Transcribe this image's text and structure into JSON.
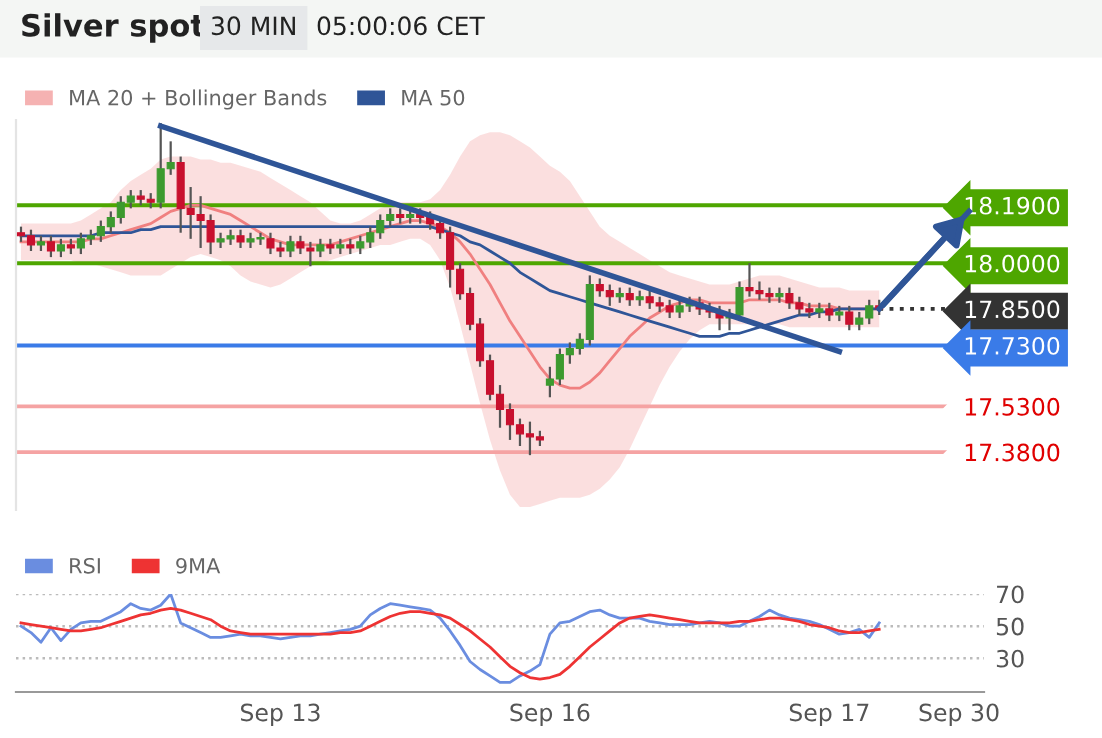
{
  "chart_data": [
    {
      "type": "candlestick",
      "title": "Silver spot",
      "subtitle": "30 MIN",
      "annotations": [
        "05:00:06 CET"
      ],
      "categories": [
        null,
        null,
        null,
        null,
        null,
        null,
        null,
        null,
        null,
        null,
        null,
        null,
        null,
        null,
        null,
        null,
        null,
        null,
        null,
        null,
        null,
        null,
        null,
        null,
        null,
        null,
        null,
        null,
        null,
        null,
        null,
        null,
        null,
        null,
        null,
        null,
        null,
        null,
        null,
        null,
        null,
        null,
        null,
        null,
        null,
        null,
        null,
        null,
        null,
        null,
        null,
        null,
        null,
        null,
        null,
        null,
        null,
        null,
        null,
        null,
        null,
        null,
        null,
        null,
        null,
        null,
        null,
        null,
        null,
        null,
        null,
        null,
        null,
        null,
        null,
        null,
        null,
        null,
        null,
        null,
        null,
        null,
        null,
        null,
        null,
        null,
        null,
        null,
        null,
        null,
        null,
        null,
        null,
        null,
        null,
        null,
        null
      ],
      "ohlc": [
        [
          18.1,
          18.12,
          18.07,
          18.09
        ],
        [
          18.09,
          18.11,
          18.04,
          18.06
        ],
        [
          18.06,
          18.09,
          18.04,
          18.07
        ],
        [
          18.07,
          18.09,
          18.02,
          18.04
        ],
        [
          18.04,
          18.08,
          18.02,
          18.06
        ],
        [
          18.06,
          18.08,
          18.03,
          18.05
        ],
        [
          18.05,
          18.1,
          18.03,
          18.08
        ],
        [
          18.08,
          18.11,
          18.06,
          18.09
        ],
        [
          18.09,
          18.14,
          18.07,
          18.12
        ],
        [
          18.12,
          18.17,
          18.1,
          18.15
        ],
        [
          18.15,
          18.22,
          18.13,
          18.2
        ],
        [
          18.2,
          18.24,
          18.18,
          18.22
        ],
        [
          18.22,
          18.24,
          18.19,
          18.21
        ],
        [
          18.21,
          18.23,
          18.18,
          18.2
        ],
        [
          18.2,
          18.46,
          18.18,
          18.31
        ],
        [
          18.31,
          18.4,
          18.29,
          18.33
        ],
        [
          18.33,
          18.35,
          18.1,
          18.18
        ],
        [
          18.18,
          18.25,
          18.08,
          18.16
        ],
        [
          18.16,
          18.22,
          18.05,
          18.14
        ],
        [
          18.14,
          18.16,
          18.03,
          18.07
        ],
        [
          18.07,
          18.1,
          18.05,
          18.08
        ],
        [
          18.08,
          18.11,
          18.06,
          18.09
        ],
        [
          18.09,
          18.11,
          18.05,
          18.07
        ],
        [
          18.07,
          18.1,
          18.05,
          18.08
        ],
        [
          18.08,
          18.1,
          18.06,
          18.08
        ],
        [
          18.08,
          18.1,
          18.03,
          18.05
        ],
        [
          18.05,
          18.07,
          18.02,
          18.04
        ],
        [
          18.04,
          18.09,
          18.02,
          18.07
        ],
        [
          18.07,
          18.09,
          18.03,
          18.05
        ],
        [
          18.05,
          18.07,
          17.99,
          18.04
        ],
        [
          18.04,
          18.08,
          18.02,
          18.06
        ],
        [
          18.06,
          18.08,
          18.03,
          18.05
        ],
        [
          18.05,
          18.08,
          18.03,
          18.06
        ],
        [
          18.06,
          18.08,
          18.03,
          18.05
        ],
        [
          18.05,
          18.09,
          18.03,
          18.07
        ],
        [
          18.07,
          18.12,
          18.05,
          18.1
        ],
        [
          18.1,
          18.16,
          18.08,
          18.14
        ],
        [
          18.14,
          18.18,
          18.12,
          18.16
        ],
        [
          18.16,
          18.18,
          18.13,
          18.15
        ],
        [
          18.15,
          18.18,
          18.13,
          18.16
        ],
        [
          18.16,
          18.18,
          18.13,
          18.15
        ],
        [
          18.15,
          18.17,
          18.11,
          18.13
        ],
        [
          18.13,
          18.15,
          18.08,
          18.1
        ],
        [
          18.1,
          18.12,
          17.92,
          17.98
        ],
        [
          17.98,
          18.0,
          17.88,
          17.9
        ],
        [
          17.9,
          17.92,
          17.78,
          17.8
        ],
        [
          17.8,
          17.82,
          17.66,
          17.68
        ],
        [
          17.68,
          17.7,
          17.55,
          17.57
        ],
        [
          17.57,
          17.6,
          17.46,
          17.52
        ],
        [
          17.52,
          17.54,
          17.42,
          17.47
        ],
        [
          17.47,
          17.49,
          17.4,
          17.44
        ],
        [
          17.44,
          17.48,
          17.37,
          17.43
        ],
        [
          17.43,
          17.45,
          17.4,
          17.42
        ],
        [
          17.6,
          17.66,
          17.56,
          17.62
        ],
        [
          17.62,
          17.72,
          17.6,
          17.7
        ],
        [
          17.7,
          17.74,
          17.67,
          17.72
        ],
        [
          17.72,
          17.77,
          17.7,
          17.75
        ],
        [
          17.75,
          17.96,
          17.73,
          17.93
        ],
        [
          17.93,
          17.95,
          17.89,
          17.91
        ],
        [
          17.91,
          17.93,
          17.86,
          17.89
        ],
        [
          17.89,
          17.92,
          17.87,
          17.9
        ],
        [
          17.9,
          17.92,
          17.86,
          17.88
        ],
        [
          17.88,
          17.91,
          17.86,
          17.89
        ],
        [
          17.89,
          17.91,
          17.85,
          17.87
        ],
        [
          17.87,
          17.89,
          17.84,
          17.86
        ],
        [
          17.86,
          17.88,
          17.82,
          17.84
        ],
        [
          17.84,
          17.88,
          17.82,
          17.86
        ],
        [
          17.86,
          17.89,
          17.84,
          17.87
        ],
        [
          17.87,
          17.89,
          17.83,
          17.85
        ],
        [
          17.85,
          17.87,
          17.82,
          17.84
        ],
        [
          17.84,
          17.86,
          17.78,
          17.82
        ],
        [
          17.82,
          17.85,
          17.78,
          17.83
        ],
        [
          17.83,
          17.94,
          17.81,
          17.92
        ],
        [
          17.92,
          18.0,
          17.89,
          17.91
        ],
        [
          17.91,
          17.94,
          17.88,
          17.9
        ],
        [
          17.9,
          17.92,
          17.87,
          17.89
        ],
        [
          17.89,
          17.92,
          17.87,
          17.9
        ],
        [
          17.9,
          17.92,
          17.85,
          17.87
        ],
        [
          17.87,
          17.89,
          17.83,
          17.85
        ],
        [
          17.85,
          17.87,
          17.82,
          17.84
        ],
        [
          17.84,
          17.87,
          17.82,
          17.85
        ],
        [
          17.85,
          17.87,
          17.81,
          17.83
        ],
        [
          17.83,
          17.86,
          17.81,
          17.84
        ],
        [
          17.84,
          17.86,
          17.78,
          17.8
        ],
        [
          17.8,
          17.84,
          17.78,
          17.82
        ],
        [
          17.82,
          17.88,
          17.8,
          17.86
        ],
        [
          17.86,
          17.88,
          17.83,
          17.85
        ],
        null,
        null,
        null,
        null,
        null,
        null,
        null,
        null,
        null,
        null
      ],
      "series": [
        {
          "name": "MA 20 + Bollinger Bands",
          "type": "line",
          "color": "#f08080",
          "values": [
            18.07,
            18.07,
            18.07,
            18.07,
            18.07,
            18.07,
            18.07,
            18.08,
            18.08,
            18.09,
            18.1,
            18.11,
            18.12,
            18.13,
            18.15,
            18.17,
            18.18,
            18.19,
            18.19,
            18.18,
            18.17,
            18.16,
            18.14,
            18.12,
            18.1,
            18.08,
            18.07,
            18.06,
            18.06,
            18.06,
            18.06,
            18.06,
            18.07,
            18.08,
            18.09,
            18.1,
            18.11,
            18.12,
            18.13,
            18.14,
            18.14,
            18.13,
            18.12,
            18.1,
            18.07,
            18.03,
            17.98,
            17.93,
            17.87,
            17.81,
            17.76,
            17.71,
            17.66,
            17.62,
            17.6,
            17.59,
            17.59,
            17.61,
            17.64,
            17.68,
            17.72,
            17.76,
            17.79,
            17.82,
            17.84,
            17.86,
            17.87,
            17.88,
            17.88,
            17.87,
            17.87,
            17.87,
            17.87,
            17.88,
            17.88,
            17.88,
            17.88,
            17.87,
            17.87,
            17.86,
            17.86,
            17.86,
            17.85,
            17.85,
            17.85,
            17.85,
            17.85,
            null,
            null,
            null,
            null,
            null,
            null,
            null,
            null,
            null,
            null
          ],
          "upper": [
            18.13,
            18.13,
            18.13,
            18.13,
            18.13,
            18.13,
            18.14,
            18.16,
            18.18,
            18.2,
            18.24,
            18.27,
            18.29,
            18.31,
            18.34,
            18.35,
            18.35,
            18.35,
            18.34,
            18.34,
            18.33,
            18.33,
            18.32,
            18.31,
            18.3,
            18.28,
            18.26,
            18.24,
            18.22,
            18.2,
            18.17,
            18.14,
            18.13,
            18.13,
            18.14,
            18.16,
            18.18,
            18.19,
            18.2,
            18.2,
            18.2,
            18.21,
            18.24,
            18.29,
            18.35,
            18.4,
            18.42,
            18.43,
            18.43,
            18.42,
            18.4,
            18.38,
            18.35,
            18.32,
            18.3,
            18.27,
            18.22,
            18.17,
            18.12,
            18.09,
            18.07,
            18.05,
            18.03,
            18.01,
            17.99,
            17.97,
            17.96,
            17.95,
            17.94,
            17.93,
            17.93,
            17.93,
            17.94,
            17.95,
            17.96,
            17.96,
            17.96,
            17.95,
            17.94,
            17.93,
            17.92,
            17.92,
            17.92,
            17.91,
            17.91,
            17.91,
            17.91,
            null,
            null,
            null,
            null,
            null,
            null,
            null,
            null,
            null,
            null
          ],
          "lower": [
            18.01,
            18.01,
            18.01,
            18.01,
            18.01,
            18.01,
            18.0,
            18.0,
            17.99,
            17.98,
            17.97,
            17.96,
            17.96,
            17.96,
            17.96,
            17.98,
            18.0,
            18.02,
            18.03,
            18.02,
            18.01,
            17.99,
            17.96,
            17.94,
            17.93,
            17.92,
            17.93,
            17.95,
            17.97,
            17.99,
            18.0,
            18.01,
            18.02,
            18.03,
            18.04,
            18.05,
            18.06,
            18.06,
            18.07,
            18.08,
            18.08,
            18.06,
            18.01,
            17.92,
            17.8,
            17.67,
            17.54,
            17.42,
            17.32,
            17.24,
            17.2,
            17.2,
            17.21,
            17.22,
            17.23,
            17.23,
            17.23,
            17.24,
            17.26,
            17.29,
            17.33,
            17.39,
            17.46,
            17.53,
            17.6,
            17.66,
            17.71,
            17.75,
            17.78,
            17.8,
            17.8,
            17.8,
            17.8,
            17.8,
            17.8,
            17.8,
            17.8,
            17.79,
            17.79,
            17.79,
            17.79,
            17.79,
            17.79,
            17.79,
            17.79,
            17.79,
            17.79,
            null,
            null,
            null,
            null,
            null,
            null,
            null,
            null,
            null,
            null
          ]
        },
        {
          "name": "MA 50",
          "type": "line",
          "color": "#2f5597",
          "values": [
            18.09,
            18.09,
            18.09,
            18.09,
            18.09,
            18.09,
            18.09,
            18.09,
            18.1,
            18.1,
            18.1,
            18.1,
            18.11,
            18.11,
            18.12,
            18.12,
            18.12,
            18.12,
            18.12,
            18.12,
            18.12,
            18.12,
            18.12,
            18.12,
            18.12,
            18.12,
            18.12,
            18.12,
            18.12,
            18.12,
            18.12,
            18.12,
            18.12,
            18.12,
            18.12,
            18.12,
            18.12,
            18.12,
            18.12,
            18.12,
            18.12,
            18.12,
            18.11,
            18.1,
            18.09,
            18.07,
            18.06,
            18.04,
            18.02,
            18.0,
            17.97,
            17.95,
            17.93,
            17.91,
            17.9,
            17.89,
            17.88,
            17.87,
            17.86,
            17.85,
            17.84,
            17.83,
            17.82,
            17.81,
            17.8,
            17.79,
            17.78,
            17.77,
            17.76,
            17.76,
            17.76,
            17.77,
            17.77,
            17.78,
            17.79,
            17.8,
            17.81,
            17.82,
            17.83,
            17.83,
            17.84,
            17.84,
            17.85,
            17.85,
            17.85,
            17.85,
            17.85,
            null,
            null,
            null,
            null,
            null,
            null,
            null,
            null,
            null,
            null
          ]
        },
        {
          "type": "line",
          "color": "#2f5597",
          "values": [
            null,
            null,
            null,
            null,
            null,
            null,
            null,
            null,
            null,
            null,
            null,
            null,
            null,
            null,
            18.45,
            null,
            null,
            null,
            null,
            null,
            null,
            null,
            null,
            null,
            null,
            null,
            null,
            null,
            null,
            null,
            null,
            null,
            null,
            null,
            null,
            null,
            null,
            null,
            null,
            null,
            null,
            null,
            null,
            null,
            null,
            null,
            null,
            null,
            null,
            null,
            null,
            null,
            null,
            null,
            null,
            null,
            null,
            null,
            null,
            null,
            null,
            null,
            null,
            null,
            null,
            null,
            null,
            null,
            null,
            null,
            null,
            null,
            null,
            null,
            null,
            null,
            null,
            null,
            null,
            null,
            null,
            null,
            17.71,
            null,
            null,
            null,
            null,
            null,
            null,
            null,
            null,
            null,
            null,
            null,
            null,
            null,
            null
          ]
        },
        {
          "type": "line",
          "color": "#2f5597",
          "values": [
            null,
            null,
            null,
            null,
            null,
            null,
            null,
            null,
            null,
            null,
            null,
            null,
            null,
            null,
            null,
            null,
            null,
            null,
            null,
            null,
            null,
            null,
            null,
            null,
            null,
            null,
            null,
            null,
            null,
            null,
            null,
            null,
            null,
            null,
            null,
            null,
            null,
            null,
            null,
            null,
            null,
            null,
            null,
            null,
            null,
            null,
            null,
            null,
            null,
            null,
            null,
            null,
            null,
            null,
            null,
            null,
            null,
            null,
            null,
            null,
            null,
            null,
            null,
            null,
            null,
            null,
            null,
            null,
            null,
            null,
            null,
            null,
            null,
            null,
            null,
            null,
            null,
            null,
            null,
            null,
            null,
            null,
            null,
            null,
            null,
            null,
            17.85,
            null,
            null,
            null,
            null,
            null,
            null,
            null,
            null,
            18.17,
            null
          ]
        }
      ],
      "ref_lines": [
        {
          "axis": "y",
          "value": 18.19,
          "color": "#4ea600"
        },
        {
          "axis": "y",
          "value": 18.0,
          "color": "#4ea600"
        },
        {
          "axis": "y",
          "value": 17.85,
          "color": "#333333",
          "line_style": "dotted"
        },
        {
          "axis": "y",
          "value": 17.73,
          "color": "#3a7be8"
        },
        {
          "axis": "y",
          "value": 17.53,
          "color": "#f5a3a3"
        },
        {
          "axis": "y",
          "value": 17.38,
          "color": "#f5a3a3"
        }
      ],
      "yticks": [
        {
          "value": 18.19,
          "label": "18.1900"
        },
        {
          "value": 18.0,
          "label": "18.0000"
        },
        {
          "value": 17.85,
          "label": "17.8500"
        },
        {
          "value": 17.73,
          "label": "17.7300"
        },
        {
          "value": 17.53,
          "label": "17.5300"
        },
        {
          "value": 17.38,
          "label": "17.3800"
        }
      ],
      "ylim": [
        17.19,
        18.47
      ],
      "legend": "top left",
      "tick_labels": "y"
    },
    {
      "type": "line",
      "categories": [
        null,
        null,
        null,
        null,
        null,
        null,
        null,
        null,
        null,
        null,
        null,
        null,
        null,
        null,
        null,
        null,
        null,
        null,
        null,
        null,
        null,
        null,
        null,
        null,
        null,
        null,
        "Sep 13",
        null,
        null,
        null,
        null,
        null,
        null,
        null,
        null,
        null,
        null,
        null,
        null,
        null,
        null,
        null,
        null,
        null,
        null,
        null,
        null,
        null,
        null,
        null,
        null,
        null,
        null,
        "Sep 16",
        null,
        null,
        null,
        null,
        null,
        null,
        null,
        null,
        null,
        null,
        null,
        null,
        null,
        null,
        null,
        null,
        null,
        null,
        null,
        null,
        null,
        null,
        null,
        null,
        null,
        null,
        null,
        "Sep 17",
        null,
        null,
        null,
        null,
        null,
        null,
        null,
        null,
        null,
        null,
        null,
        null,
        "Sep 30",
        null,
        null
      ],
      "series": [
        {
          "name": "RSI",
          "color": "#6a8de0",
          "values": [
            50,
            46,
            40,
            49,
            41,
            48,
            52,
            53,
            53,
            56,
            59,
            64,
            61,
            60,
            63,
            70,
            52,
            49,
            46,
            43,
            43,
            44,
            45,
            44,
            44,
            43,
            42,
            43,
            44,
            44,
            45,
            46,
            47,
            48,
            50,
            57,
            61,
            64,
            63,
            62,
            61,
            60,
            55,
            47,
            38,
            28,
            23,
            19,
            15,
            15,
            19,
            22,
            26,
            45,
            52,
            53,
            56,
            59,
            60,
            57,
            55,
            55,
            55,
            53,
            52,
            51,
            51,
            51,
            52,
            53,
            52,
            50,
            50,
            53,
            56,
            60,
            57,
            55,
            54,
            53,
            51,
            48,
            45,
            46,
            48,
            43,
            52,
            null,
            null,
            null,
            null,
            null,
            null,
            null,
            null,
            null,
            null
          ]
        },
        {
          "name": "9MA",
          "color": "#ee3333",
          "values": [
            52,
            51,
            50,
            49,
            48,
            47,
            47,
            48,
            49,
            51,
            53,
            55,
            57,
            58,
            60,
            61,
            60,
            58,
            56,
            54,
            50,
            47,
            46,
            45,
            45,
            45,
            45,
            45,
            45,
            45,
            45,
            45,
            46,
            46,
            47,
            50,
            53,
            56,
            58,
            59,
            59,
            58,
            57,
            55,
            51,
            47,
            42,
            37,
            31,
            25,
            21,
            18,
            17,
            18,
            20,
            25,
            31,
            37,
            42,
            47,
            52,
            55,
            56,
            57,
            56,
            55,
            54,
            53,
            52,
            52,
            52,
            52,
            53,
            53,
            54,
            55,
            55,
            54,
            53,
            51,
            50,
            49,
            47,
            46,
            46,
            47,
            48,
            null,
            null,
            null,
            null,
            null,
            null,
            null,
            null,
            null,
            null
          ]
        }
      ],
      "ylim": [
        9,
        70
      ],
      "yticks": [
        30,
        50,
        70
      ],
      "grid": "y",
      "legend": "top left"
    }
  ]
}
